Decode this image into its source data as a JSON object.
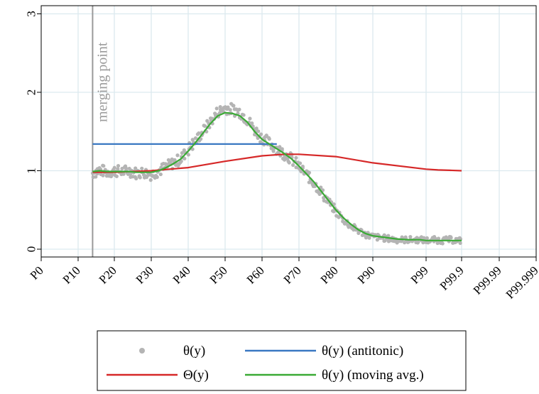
{
  "chart_data": {
    "type": "line",
    "title": "",
    "xlabel": "",
    "ylabel": "",
    "x_ticks": [
      "P0",
      "P10",
      "P20",
      "P30",
      "P40",
      "P50",
      "P60",
      "P70",
      "P80",
      "P90",
      "P99",
      "P99.9",
      "P99.99",
      "P99.999"
    ],
    "y_ticks": [
      "0",
      "1",
      "2",
      "3"
    ],
    "ylim": [
      0,
      3
    ],
    "grid": true,
    "legend_position": "bottom",
    "annotation": {
      "text": "merging point",
      "x": 14.0
    },
    "series": [
      {
        "name": "θ(y)",
        "kind": "scatter",
        "color": "#b4b4b4",
        "x": [
          14,
          16,
          18,
          20,
          22,
          24,
          26,
          28,
          30,
          32,
          34,
          36,
          38,
          40,
          42,
          44,
          46,
          48,
          50,
          52,
          54,
          56,
          58,
          60,
          62,
          64,
          66,
          68,
          70,
          72,
          74,
          76,
          78,
          80,
          82,
          84,
          86,
          88,
          90,
          92,
          94,
          96,
          98,
          99,
          99.2,
          99.4,
          99.6,
          99.8,
          99.9
        ],
        "y": [
          0.97,
          1.01,
          0.98,
          1.0,
          0.99,
          1.0,
          0.97,
          0.98,
          0.95,
          1.0,
          1.05,
          1.1,
          1.15,
          1.27,
          1.38,
          1.5,
          1.62,
          1.75,
          1.8,
          1.78,
          1.75,
          1.65,
          1.52,
          1.42,
          1.35,
          1.28,
          1.22,
          1.15,
          1.05,
          0.95,
          0.85,
          0.73,
          0.6,
          0.48,
          0.38,
          0.3,
          0.24,
          0.19,
          0.16,
          0.14,
          0.12,
          0.12,
          0.12,
          0.11,
          0.12,
          0.11,
          0.12,
          0.11,
          0.11
        ]
      },
      {
        "name": "θ(y) (antitonic)",
        "kind": "line",
        "color": "#3a78c2",
        "x": [
          14,
          64
        ],
        "y": [
          1.34,
          1.34
        ]
      },
      {
        "name": "Θ(y)",
        "kind": "line",
        "color": "#d62828",
        "x": [
          14,
          20,
          30,
          40,
          50,
          60,
          66,
          70,
          80,
          90,
          99,
          99.3,
          99.6,
          99.9
        ],
        "y": [
          0.98,
          0.98,
          1.0,
          1.04,
          1.12,
          1.19,
          1.21,
          1.21,
          1.18,
          1.1,
          1.02,
          1.01,
          1.005,
          1.0
        ]
      },
      {
        "name": "θ(y) (moving avg.)",
        "kind": "line",
        "color": "#3aaa35",
        "x": [
          14,
          16,
          18,
          20,
          22,
          24,
          26,
          28,
          30,
          32,
          34,
          36,
          38,
          40,
          42,
          44,
          46,
          48,
          50,
          52,
          54,
          56,
          58,
          60,
          62,
          64,
          66,
          68,
          70,
          72,
          74,
          76,
          78,
          80,
          82,
          84,
          86,
          88,
          90,
          92,
          94,
          96,
          98,
          99,
          99.5,
          99.9
        ],
        "y": [
          0.99,
          1.0,
          0.99,
          0.99,
          0.99,
          0.99,
          0.98,
          0.98,
          0.98,
          1.0,
          1.04,
          1.09,
          1.15,
          1.25,
          1.36,
          1.48,
          1.6,
          1.7,
          1.74,
          1.73,
          1.7,
          1.62,
          1.5,
          1.4,
          1.34,
          1.28,
          1.22,
          1.15,
          1.06,
          0.96,
          0.86,
          0.74,
          0.62,
          0.5,
          0.4,
          0.32,
          0.25,
          0.2,
          0.17,
          0.15,
          0.13,
          0.12,
          0.12,
          0.11,
          0.11,
          0.11
        ]
      }
    ]
  }
}
